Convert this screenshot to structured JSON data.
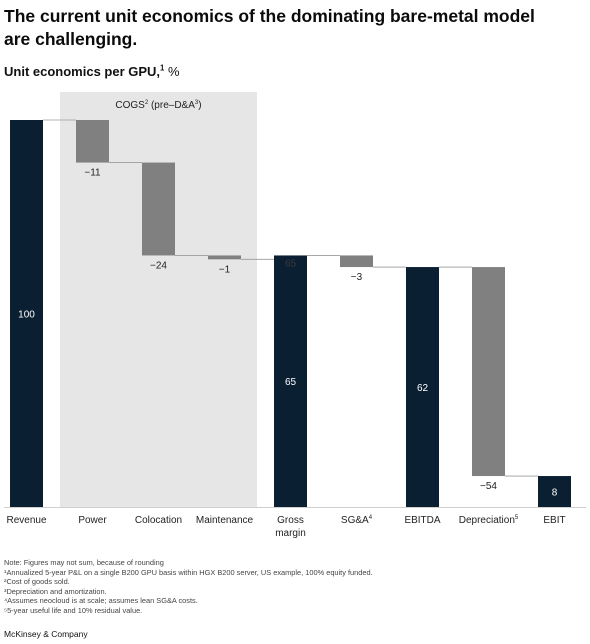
{
  "title": "The current unit economics of the dominating bare-metal model are challenging.",
  "subtitle": {
    "text": "Unit economics per GPU,",
    "sup": "1",
    "unit": "%"
  },
  "chart_data": {
    "type": "waterfall",
    "ylim": [
      0,
      100
    ],
    "group_label": {
      "text": "COGS",
      "sup1": "2",
      "mid": " (pre–D&A",
      "sup2": "3",
      "end": ")"
    },
    "colors": {
      "total": "#0b1f33",
      "delta": "#808080",
      "shade": "#e6e6e6"
    },
    "bars": [
      {
        "category": "Revenue",
        "kind": "total",
        "value": 100,
        "label": "100"
      },
      {
        "category": "Power",
        "kind": "delta",
        "value": -11,
        "label": "−11"
      },
      {
        "category": "Colocation",
        "kind": "delta",
        "value": -24,
        "label": "−24"
      },
      {
        "category": "Maintenance",
        "kind": "delta",
        "value": -1,
        "label": "−1"
      },
      {
        "category": "Gross margin",
        "kind": "total",
        "value": 65,
        "label": "65",
        "top_label": "65"
      },
      {
        "category": "SG&A",
        "sup": "4",
        "kind": "delta",
        "value": -3,
        "label": "−3"
      },
      {
        "category": "EBITDA",
        "kind": "total",
        "value": 62,
        "label": "62"
      },
      {
        "category": "Depreciation",
        "sup": "5",
        "kind": "delta",
        "value": -54,
        "label": "−54"
      },
      {
        "category": "EBIT",
        "kind": "total",
        "value": 8,
        "label": "8"
      }
    ]
  },
  "notes": [
    "Note: Figures may not sum, because of rounding",
    "¹Annualized 5-year P&L on a single B200 GPU basis within HGX B200 server, US example, 100% equity funded.",
    "²Cost of goods sold.",
    "³Depreciation and amortization.",
    "⁴Assumes neocloud is at scale; assumes lean SG&A costs.",
    "⁵5-year useful life and 10% residual value."
  ],
  "source": "McKinsey & Company"
}
